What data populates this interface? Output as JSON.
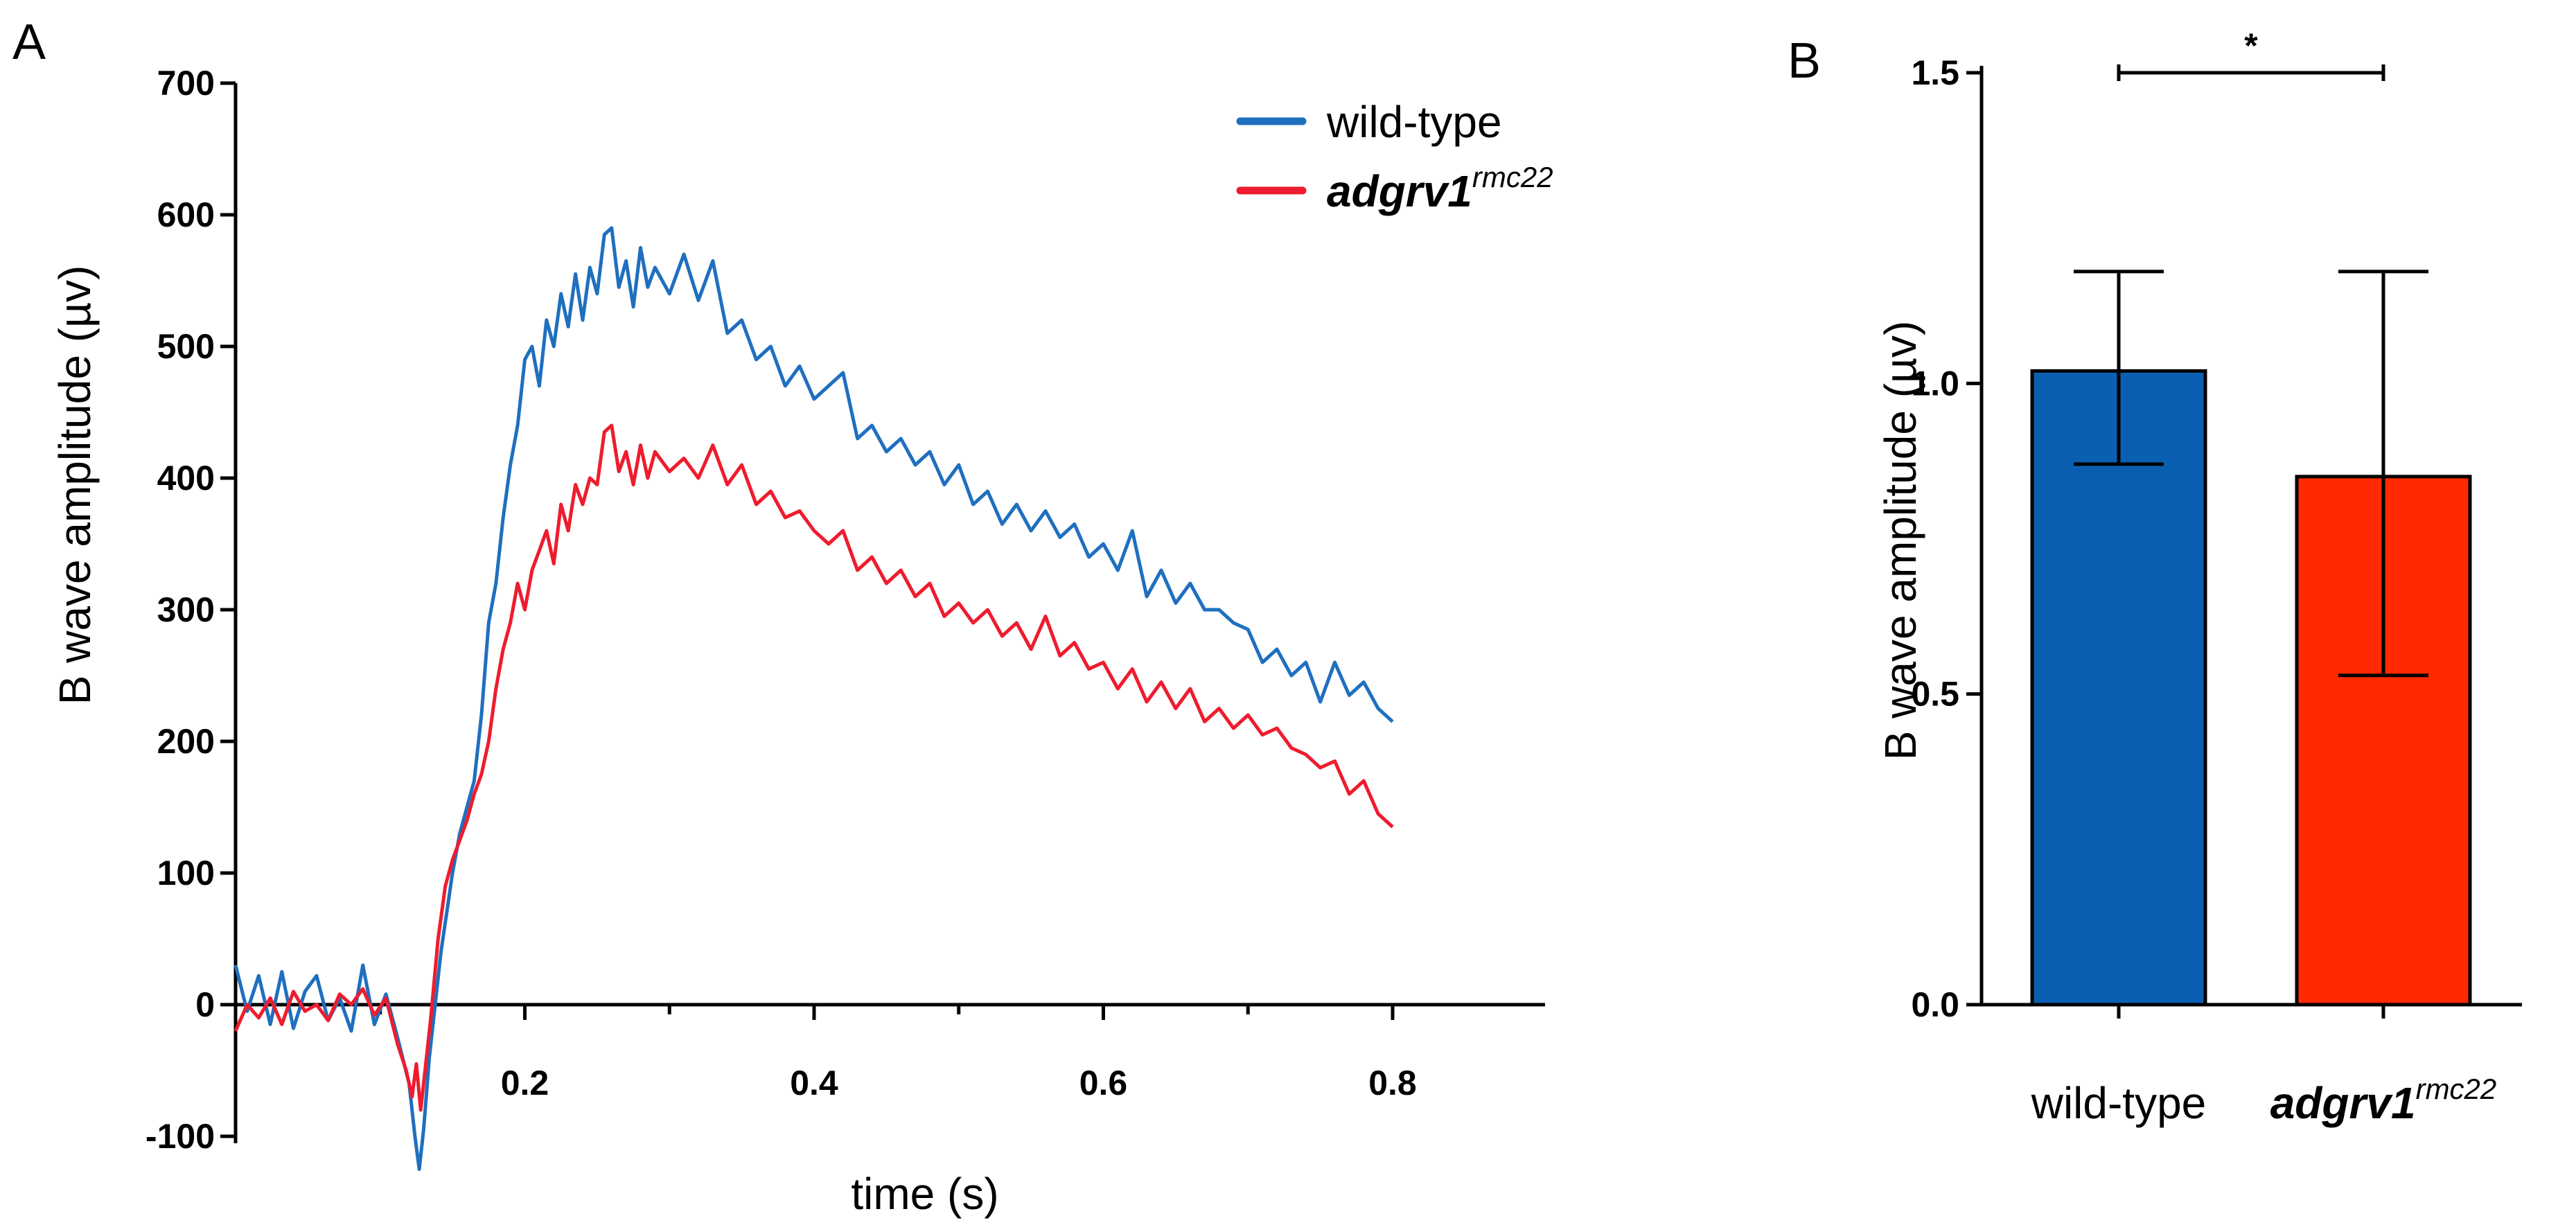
{
  "colors": {
    "wild_type": "#1f6fbf",
    "mutant": "#ee1c2e",
    "bar_wild_type": "#0b5fb0",
    "bar_mutant": "#ff2a00",
    "axes": "#000000"
  },
  "chart_data": [
    {
      "panel": "A",
      "type": "line",
      "xlabel": "time (s)",
      "ylabel": "B wave amplitude (µv)",
      "xlim": [
        0.0,
        0.9
      ],
      "ylim": [
        -120,
        700
      ],
      "xticks": [
        0.2,
        0.4,
        0.6,
        0.8
      ],
      "xtick_labels": [
        "0.2",
        "0.4",
        "0.6",
        "0.8"
      ],
      "yticks": [
        -100,
        0,
        100,
        200,
        300,
        400,
        500,
        600,
        700
      ],
      "ytick_labels": [
        "-100",
        "0",
        "100",
        "200",
        "300",
        "400",
        "500",
        "600",
        "700"
      ],
      "legend_position": "top-right",
      "series": [
        {
          "name": "wild-type",
          "color_key": "wild_type",
          "points": [
            [
              0.0,
              30
            ],
            [
              0.008,
              -5
            ],
            [
              0.016,
              22
            ],
            [
              0.024,
              -15
            ],
            [
              0.032,
              25
            ],
            [
              0.04,
              -18
            ],
            [
              0.048,
              10
            ],
            [
              0.056,
              22
            ],
            [
              0.064,
              -12
            ],
            [
              0.072,
              5
            ],
            [
              0.08,
              -20
            ],
            [
              0.088,
              30
            ],
            [
              0.096,
              -15
            ],
            [
              0.104,
              8
            ],
            [
              0.112,
              -25
            ],
            [
              0.12,
              -60
            ],
            [
              0.124,
              -100
            ],
            [
              0.127,
              -125
            ],
            [
              0.13,
              -95
            ],
            [
              0.134,
              -40
            ],
            [
              0.138,
              0
            ],
            [
              0.142,
              40
            ],
            [
              0.146,
              70
            ],
            [
              0.15,
              100
            ],
            [
              0.155,
              130
            ],
            [
              0.16,
              150
            ],
            [
              0.165,
              170
            ],
            [
              0.17,
              220
            ],
            [
              0.175,
              290
            ],
            [
              0.18,
              320
            ],
            [
              0.185,
              370
            ],
            [
              0.19,
              410
            ],
            [
              0.195,
              440
            ],
            [
              0.2,
              490
            ],
            [
              0.205,
              500
            ],
            [
              0.21,
              470
            ],
            [
              0.215,
              520
            ],
            [
              0.22,
              500
            ],
            [
              0.225,
              540
            ],
            [
              0.23,
              515
            ],
            [
              0.235,
              555
            ],
            [
              0.24,
              520
            ],
            [
              0.245,
              560
            ],
            [
              0.25,
              540
            ],
            [
              0.255,
              585
            ],
            [
              0.26,
              590
            ],
            [
              0.265,
              545
            ],
            [
              0.27,
              565
            ],
            [
              0.275,
              530
            ],
            [
              0.28,
              575
            ],
            [
              0.285,
              545
            ],
            [
              0.29,
              560
            ],
            [
              0.3,
              540
            ],
            [
              0.31,
              570
            ],
            [
              0.32,
              535
            ],
            [
              0.33,
              565
            ],
            [
              0.34,
              510
            ],
            [
              0.35,
              520
            ],
            [
              0.36,
              490
            ],
            [
              0.37,
              500
            ],
            [
              0.38,
              470
            ],
            [
              0.39,
              485
            ],
            [
              0.4,
              460
            ],
            [
              0.41,
              470
            ],
            [
              0.42,
              480
            ],
            [
              0.43,
              430
            ],
            [
              0.44,
              440
            ],
            [
              0.45,
              420
            ],
            [
              0.46,
              430
            ],
            [
              0.47,
              410
            ],
            [
              0.48,
              420
            ],
            [
              0.49,
              395
            ],
            [
              0.5,
              410
            ],
            [
              0.51,
              380
            ],
            [
              0.52,
              390
            ],
            [
              0.53,
              365
            ],
            [
              0.54,
              380
            ],
            [
              0.55,
              360
            ],
            [
              0.56,
              375
            ],
            [
              0.57,
              355
            ],
            [
              0.58,
              365
            ],
            [
              0.59,
              340
            ],
            [
              0.6,
              350
            ],
            [
              0.61,
              330
            ],
            [
              0.62,
              360
            ],
            [
              0.63,
              310
            ],
            [
              0.64,
              330
            ],
            [
              0.65,
              305
            ],
            [
              0.66,
              320
            ],
            [
              0.67,
              300
            ],
            [
              0.68,
              300
            ],
            [
              0.69,
              290
            ],
            [
              0.7,
              285
            ],
            [
              0.71,
              260
            ],
            [
              0.72,
              270
            ],
            [
              0.73,
              250
            ],
            [
              0.74,
              260
            ],
            [
              0.75,
              230
            ],
            [
              0.76,
              260
            ],
            [
              0.77,
              235
            ],
            [
              0.78,
              245
            ],
            [
              0.79,
              225
            ],
            [
              0.8,
              215
            ]
          ]
        },
        {
          "name": "adgrv1rmc22",
          "color_key": "mutant",
          "points": [
            [
              0.0,
              -20
            ],
            [
              0.008,
              0
            ],
            [
              0.016,
              -10
            ],
            [
              0.024,
              5
            ],
            [
              0.032,
              -15
            ],
            [
              0.04,
              10
            ],
            [
              0.048,
              -5
            ],
            [
              0.056,
              0
            ],
            [
              0.064,
              -12
            ],
            [
              0.072,
              8
            ],
            [
              0.08,
              0
            ],
            [
              0.088,
              12
            ],
            [
              0.096,
              -8
            ],
            [
              0.104,
              5
            ],
            [
              0.112,
              -30
            ],
            [
              0.118,
              -50
            ],
            [
              0.122,
              -70
            ],
            [
              0.125,
              -45
            ],
            [
              0.128,
              -80
            ],
            [
              0.131,
              -50
            ],
            [
              0.135,
              -10
            ],
            [
              0.14,
              50
            ],
            [
              0.145,
              90
            ],
            [
              0.15,
              110
            ],
            [
              0.155,
              125
            ],
            [
              0.16,
              140
            ],
            [
              0.165,
              160
            ],
            [
              0.17,
              175
            ],
            [
              0.175,
              200
            ],
            [
              0.18,
              240
            ],
            [
              0.185,
              270
            ],
            [
              0.19,
              290
            ],
            [
              0.195,
              320
            ],
            [
              0.2,
              300
            ],
            [
              0.205,
              330
            ],
            [
              0.21,
              345
            ],
            [
              0.215,
              360
            ],
            [
              0.22,
              335
            ],
            [
              0.225,
              380
            ],
            [
              0.23,
              360
            ],
            [
              0.235,
              395
            ],
            [
              0.24,
              380
            ],
            [
              0.245,
              400
            ],
            [
              0.25,
              395
            ],
            [
              0.255,
              435
            ],
            [
              0.26,
              440
            ],
            [
              0.265,
              405
            ],
            [
              0.27,
              420
            ],
            [
              0.275,
              395
            ],
            [
              0.28,
              425
            ],
            [
              0.285,
              400
            ],
            [
              0.29,
              420
            ],
            [
              0.3,
              405
            ],
            [
              0.31,
              415
            ],
            [
              0.32,
              400
            ],
            [
              0.33,
              425
            ],
            [
              0.34,
              395
            ],
            [
              0.35,
              410
            ],
            [
              0.36,
              380
            ],
            [
              0.37,
              390
            ],
            [
              0.38,
              370
            ],
            [
              0.39,
              375
            ],
            [
              0.4,
              360
            ],
            [
              0.41,
              350
            ],
            [
              0.42,
              360
            ],
            [
              0.43,
              330
            ],
            [
              0.44,
              340
            ],
            [
              0.45,
              320
            ],
            [
              0.46,
              330
            ],
            [
              0.47,
              310
            ],
            [
              0.48,
              320
            ],
            [
              0.49,
              295
            ],
            [
              0.5,
              305
            ],
            [
              0.51,
              290
            ],
            [
              0.52,
              300
            ],
            [
              0.53,
              280
            ],
            [
              0.54,
              290
            ],
            [
              0.55,
              270
            ],
            [
              0.56,
              295
            ],
            [
              0.57,
              265
            ],
            [
              0.58,
              275
            ],
            [
              0.59,
              255
            ],
            [
              0.6,
              260
            ],
            [
              0.61,
              240
            ],
            [
              0.62,
              255
            ],
            [
              0.63,
              230
            ],
            [
              0.64,
              245
            ],
            [
              0.65,
              225
            ],
            [
              0.66,
              240
            ],
            [
              0.67,
              215
            ],
            [
              0.68,
              225
            ],
            [
              0.69,
              210
            ],
            [
              0.7,
              220
            ],
            [
              0.71,
              205
            ],
            [
              0.72,
              210
            ],
            [
              0.73,
              195
            ],
            [
              0.74,
              190
            ],
            [
              0.75,
              180
            ],
            [
              0.76,
              185
            ],
            [
              0.77,
              160
            ],
            [
              0.78,
              170
            ],
            [
              0.79,
              145
            ],
            [
              0.8,
              135
            ]
          ]
        }
      ]
    },
    {
      "panel": "B",
      "type": "bar",
      "ylabel": "B wave amplitude (µv)",
      "ylim": [
        0,
        1.5
      ],
      "yticks": [
        0.0,
        0.5,
        1.0,
        1.5
      ],
      "ytick_labels": [
        "0.0",
        "0.5",
        "1.0",
        "1.5"
      ],
      "categories": [
        "wild-type",
        "adgrv1rmc22"
      ],
      "values": [
        1.02,
        0.85
      ],
      "error_low": [
        0.87,
        0.53
      ],
      "error_high": [
        1.18,
        1.18
      ],
      "significance": {
        "between": [
          "wild-type",
          "adgrv1rmc22"
        ],
        "label": "*"
      }
    }
  ],
  "text": {
    "panel_a_letter": "A",
    "panel_b_letter": "B",
    "legend_wild_type": "wild-type",
    "legend_mutant_gene": "adgrv1",
    "legend_mutant_allele": "rmc22",
    "x_axis_title_a": "time (s)",
    "y_axis_title_a": "B wave amplitude (µv)",
    "y_axis_title_b": "B wave amplitude (µv)",
    "cat_wild_type": "wild-type",
    "cat_mutant_gene": "adgrv1",
    "cat_mutant_allele": "rmc22",
    "significance_mark": "*"
  }
}
